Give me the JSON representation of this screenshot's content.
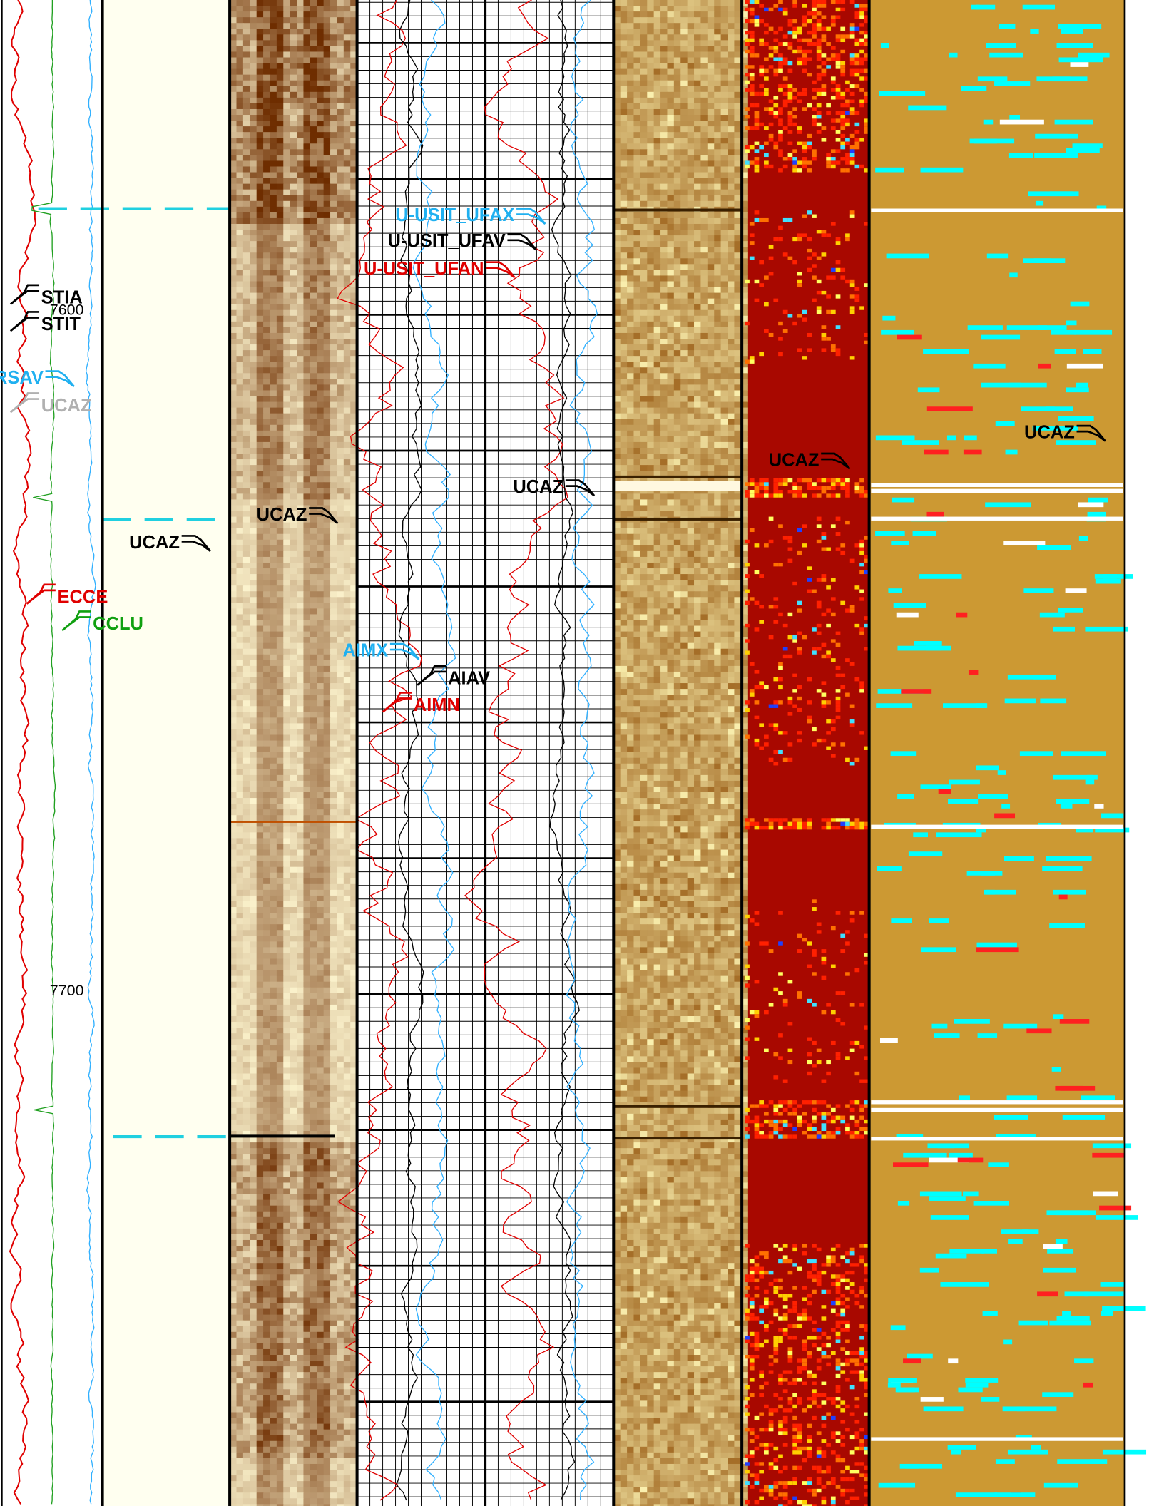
{
  "annotations": [
    "STIA",
    "STIT",
    "RSAV",
    "UCAZ",
    "ECCE",
    "CCLU",
    "UCAZ",
    "UCAZ",
    "U-USIT_UFAX",
    "U-USIT_UFAV",
    "U-USIT_UFAN",
    "UCAZ",
    "AIMX",
    "AIAV",
    "AIMN",
    "UCAZ",
    "UCAZ"
  ],
  "depth_labels": [
    "7600",
    "7700"
  ]
}
